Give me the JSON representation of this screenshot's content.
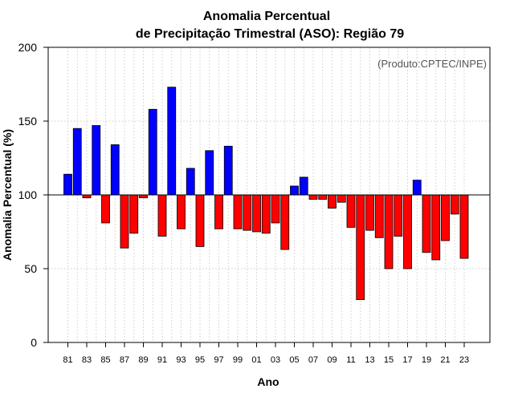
{
  "chart_data": {
    "type": "bar",
    "title_line1": "Anomalia Percentual",
    "title_line2": "de Precipitação Trimestral (ASO): Região 79",
    "xlabel": "Ano",
    "ylabel": "Anomalia Percentual (%)",
    "credit": "(Produto:CPTEC/INPE)",
    "baseline": 100,
    "ylim": [
      0,
      200
    ],
    "yticks": [
      0,
      50,
      100,
      150,
      200
    ],
    "ytick_labels": [
      "0",
      "50",
      "100",
      "150",
      "200"
    ],
    "xtick_labels": [
      "81",
      "83",
      "85",
      "87",
      "89",
      "91",
      "93",
      "95",
      "97",
      "99",
      "01",
      "03",
      "05",
      "07",
      "09",
      "11",
      "13",
      "15",
      "17",
      "19",
      "21",
      "23"
    ],
    "categories": [
      "1981",
      "1982",
      "1983",
      "1984",
      "1985",
      "1986",
      "1987",
      "1988",
      "1989",
      "1990",
      "1991",
      "1992",
      "1993",
      "1994",
      "1995",
      "1996",
      "1997",
      "1998",
      "1999",
      "2000",
      "2001",
      "2002",
      "2003",
      "2004",
      "2005",
      "2006",
      "2007",
      "2008",
      "2009",
      "2010",
      "2011",
      "2012",
      "2013",
      "2014",
      "2015",
      "2016",
      "2017",
      "2018",
      "2019",
      "2020",
      "2021",
      "2022",
      "2023"
    ],
    "values": [
      114,
      145,
      98,
      147,
      81,
      134,
      64,
      74,
      98,
      158,
      72,
      173,
      77,
      118,
      65,
      130,
      77,
      133,
      77,
      76,
      75,
      74,
      81,
      63,
      106,
      112,
      97,
      97,
      91,
      95,
      78,
      29,
      76,
      71,
      50,
      72,
      50,
      110,
      61,
      56,
      69,
      87,
      57
    ],
    "colors": {
      "positive": "#0000ff",
      "negative": "#ff0000",
      "outline": "#000000",
      "grid": "#d9d9d9"
    }
  }
}
